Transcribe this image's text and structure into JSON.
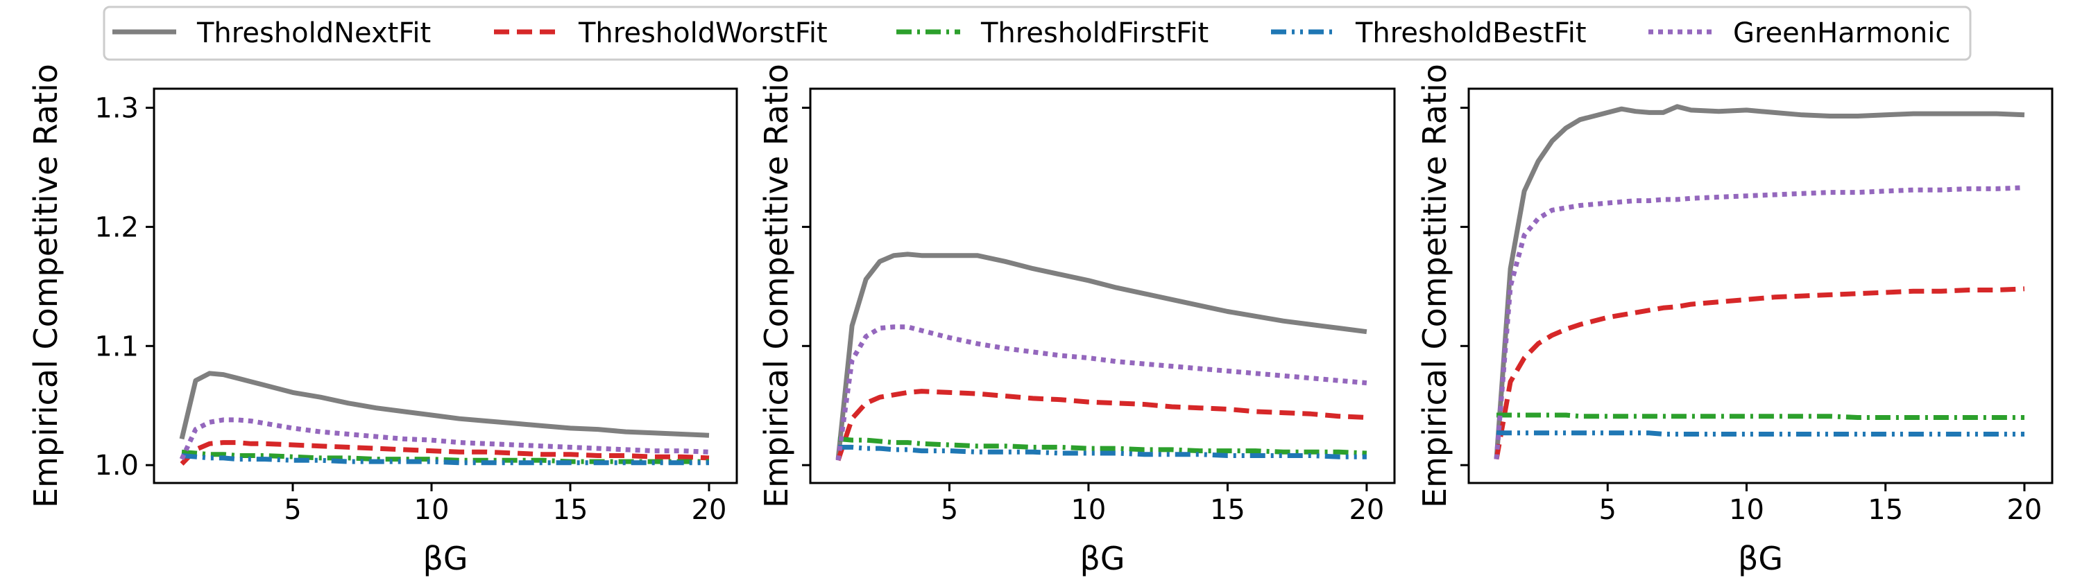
{
  "legend": {
    "items": [
      {
        "name": "ThresholdNextFit",
        "color": "#7f7f7f",
        "style": "solid"
      },
      {
        "name": "ThresholdWorstFit",
        "color": "#d62728",
        "style": "dashed"
      },
      {
        "name": "ThresholdFirstFit",
        "color": "#2ca02c",
        "style": "dashdot"
      },
      {
        "name": "ThresholdBestFit",
        "color": "#1f77b4",
        "style": "dashdotdot"
      },
      {
        "name": "GreenHarmonic",
        "color": "#9467bd",
        "style": "dotted"
      }
    ]
  },
  "chart_data": [
    {
      "type": "line",
      "xlabel": "βG",
      "ylabel": "Empirical Competitive Ratio",
      "xlim": [
        0,
        21
      ],
      "ylim": [
        0.985,
        1.316
      ],
      "xticks": [
        5,
        10,
        15,
        20
      ],
      "yticks": [
        1.0,
        1.1,
        1.2,
        1.3
      ],
      "ytick_labels": [
        "1.0",
        "1.1",
        "1.2",
        "1.3"
      ],
      "grid": false,
      "x": [
        1,
        1.5,
        2,
        2.5,
        3,
        3.5,
        4,
        5,
        6,
        7,
        8,
        9,
        10,
        11,
        12,
        13,
        14,
        15,
        16,
        17,
        18,
        19,
        20
      ],
      "series": [
        {
          "name": "ThresholdNextFit",
          "values": [
            1.022,
            1.071,
            1.077,
            1.076,
            1.073,
            1.07,
            1.067,
            1.061,
            1.057,
            1.052,
            1.048,
            1.045,
            1.042,
            1.039,
            1.037,
            1.035,
            1.033,
            1.031,
            1.03,
            1.028,
            1.027,
            1.026,
            1.025
          ]
        },
        {
          "name": "ThresholdWorstFit",
          "values": [
            1.001,
            1.013,
            1.018,
            1.019,
            1.019,
            1.018,
            1.018,
            1.017,
            1.016,
            1.015,
            1.014,
            1.013,
            1.012,
            1.011,
            1.011,
            1.01,
            1.009,
            1.009,
            1.008,
            1.008,
            1.007,
            1.007,
            1.006
          ]
        },
        {
          "name": "ThresholdFirstFit",
          "values": [
            1.011,
            1.01,
            1.009,
            1.009,
            1.008,
            1.008,
            1.008,
            1.007,
            1.006,
            1.006,
            1.005,
            1.005,
            1.005,
            1.004,
            1.004,
            1.004,
            1.004,
            1.003,
            1.003,
            1.003,
            1.003,
            1.003,
            1.003
          ]
        },
        {
          "name": "ThresholdBestFit",
          "values": [
            1.008,
            1.007,
            1.006,
            1.006,
            1.005,
            1.005,
            1.005,
            1.004,
            1.004,
            1.003,
            1.003,
            1.003,
            1.003,
            1.002,
            1.002,
            1.002,
            1.002,
            1.002,
            1.002,
            1.002,
            1.002,
            1.002,
            1.002
          ]
        },
        {
          "name": "GreenHarmonic",
          "values": [
            1.005,
            1.03,
            1.036,
            1.038,
            1.038,
            1.037,
            1.035,
            1.031,
            1.028,
            1.026,
            1.024,
            1.022,
            1.021,
            1.019,
            1.018,
            1.017,
            1.016,
            1.015,
            1.014,
            1.013,
            1.012,
            1.012,
            1.011
          ]
        }
      ]
    },
    {
      "type": "line",
      "xlabel": "βG",
      "ylabel": "Empirical Competitive Ratio",
      "xlim": [
        0,
        21
      ],
      "ylim": [
        0.985,
        1.316
      ],
      "xticks": [
        5,
        10,
        15,
        20
      ],
      "yticks": [
        1.0,
        1.1,
        1.2,
        1.3
      ],
      "ytick_labels": [
        "",
        "",
        "",
        ""
      ],
      "grid": false,
      "x": [
        1,
        1.5,
        2,
        2.5,
        3,
        3.5,
        4,
        5,
        6,
        7,
        8,
        9,
        10,
        11,
        12,
        13,
        14,
        15,
        16,
        17,
        18,
        19,
        20
      ],
      "series": [
        {
          "name": "ThresholdNextFit",
          "values": [
            1.005,
            1.117,
            1.156,
            1.171,
            1.176,
            1.177,
            1.176,
            1.176,
            1.176,
            1.171,
            1.165,
            1.16,
            1.155,
            1.149,
            1.144,
            1.139,
            1.134,
            1.129,
            1.125,
            1.121,
            1.118,
            1.115,
            1.112
          ]
        },
        {
          "name": "ThresholdWorstFit",
          "values": [
            1.004,
            1.039,
            1.052,
            1.057,
            1.059,
            1.061,
            1.062,
            1.061,
            1.06,
            1.058,
            1.056,
            1.055,
            1.053,
            1.052,
            1.051,
            1.049,
            1.048,
            1.047,
            1.045,
            1.044,
            1.043,
            1.041,
            1.04
          ]
        },
        {
          "name": "ThresholdFirstFit",
          "values": [
            1.022,
            1.021,
            1.021,
            1.02,
            1.019,
            1.019,
            1.018,
            1.017,
            1.016,
            1.016,
            1.015,
            1.015,
            1.014,
            1.014,
            1.013,
            1.013,
            1.012,
            1.012,
            1.012,
            1.011,
            1.011,
            1.011,
            1.01
          ]
        },
        {
          "name": "ThresholdBestFit",
          "values": [
            1.015,
            1.015,
            1.014,
            1.014,
            1.013,
            1.013,
            1.012,
            1.012,
            1.011,
            1.011,
            1.011,
            1.01,
            1.01,
            1.01,
            1.009,
            1.009,
            1.009,
            1.008,
            1.008,
            1.008,
            1.008,
            1.007,
            1.007
          ]
        },
        {
          "name": "GreenHarmonic",
          "values": [
            1.004,
            1.088,
            1.108,
            1.115,
            1.116,
            1.116,
            1.113,
            1.107,
            1.102,
            1.098,
            1.095,
            1.092,
            1.09,
            1.087,
            1.085,
            1.083,
            1.081,
            1.079,
            1.077,
            1.075,
            1.073,
            1.071,
            1.069
          ]
        }
      ]
    },
    {
      "type": "line",
      "xlabel": "βG",
      "ylabel": "Empirical Competitive Ratio",
      "xlim": [
        0,
        21
      ],
      "ylim": [
        0.985,
        1.316
      ],
      "xticks": [
        5,
        10,
        15,
        20
      ],
      "yticks": [
        1.0,
        1.1,
        1.2,
        1.3
      ],
      "ytick_labels": [
        "",
        "",
        "",
        ""
      ],
      "grid": false,
      "x": [
        1,
        1.5,
        2,
        2.5,
        3,
        3.5,
        4,
        5,
        5.5,
        6,
        6.5,
        7,
        7.5,
        8,
        9,
        10,
        11,
        12,
        13,
        14,
        15,
        16,
        17,
        18,
        19,
        20
      ],
      "series": [
        {
          "name": "ThresholdNextFit",
          "values": [
            1.005,
            1.165,
            1.23,
            1.255,
            1.272,
            1.283,
            1.29,
            1.296,
            1.299,
            1.297,
            1.296,
            1.296,
            1.301,
            1.298,
            1.297,
            1.298,
            1.296,
            1.294,
            1.293,
            1.293,
            1.294,
            1.295,
            1.295,
            1.295,
            1.295,
            1.294
          ]
        },
        {
          "name": "ThresholdWorstFit",
          "values": [
            1.005,
            1.07,
            1.09,
            1.102,
            1.109,
            1.114,
            1.118,
            1.124,
            1.126,
            1.128,
            1.13,
            1.132,
            1.133,
            1.135,
            1.137,
            1.139,
            1.141,
            1.142,
            1.143,
            1.144,
            1.145,
            1.146,
            1.146,
            1.147,
            1.147,
            1.148
          ]
        },
        {
          "name": "ThresholdFirstFit",
          "values": [
            1.042,
            1.042,
            1.042,
            1.042,
            1.042,
            1.042,
            1.041,
            1.041,
            1.041,
            1.041,
            1.041,
            1.041,
            1.041,
            1.041,
            1.041,
            1.041,
            1.041,
            1.041,
            1.041,
            1.04,
            1.04,
            1.04,
            1.04,
            1.04,
            1.04,
            1.04
          ]
        },
        {
          "name": "ThresholdBestFit",
          "values": [
            1.027,
            1.027,
            1.027,
            1.027,
            1.027,
            1.027,
            1.027,
            1.027,
            1.027,
            1.027,
            1.027,
            1.026,
            1.026,
            1.026,
            1.026,
            1.026,
            1.026,
            1.026,
            1.026,
            1.026,
            1.026,
            1.026,
            1.026,
            1.026,
            1.026,
            1.026
          ]
        },
        {
          "name": "GreenHarmonic",
          "values": [
            1.005,
            1.15,
            1.193,
            1.207,
            1.214,
            1.216,
            1.218,
            1.22,
            1.221,
            1.222,
            1.222,
            1.223,
            1.223,
            1.224,
            1.225,
            1.226,
            1.227,
            1.228,
            1.229,
            1.229,
            1.23,
            1.231,
            1.231,
            1.232,
            1.232,
            1.233
          ]
        }
      ]
    }
  ]
}
